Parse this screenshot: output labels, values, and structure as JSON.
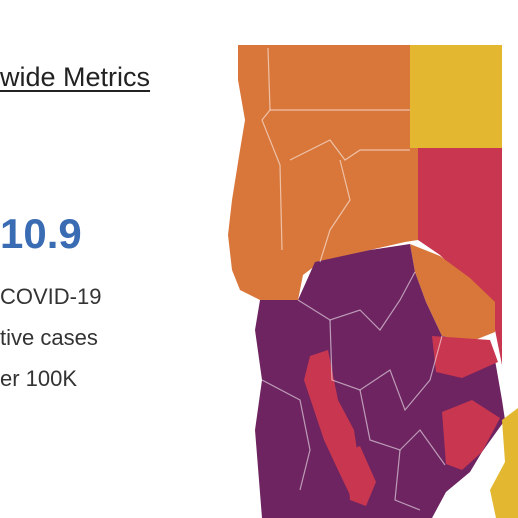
{
  "header": {
    "title": "wide Metrics"
  },
  "metric": {
    "value": "10.9",
    "label_lines": [
      "COVID-19",
      "tive cases",
      "er 100K"
    ]
  }
}
